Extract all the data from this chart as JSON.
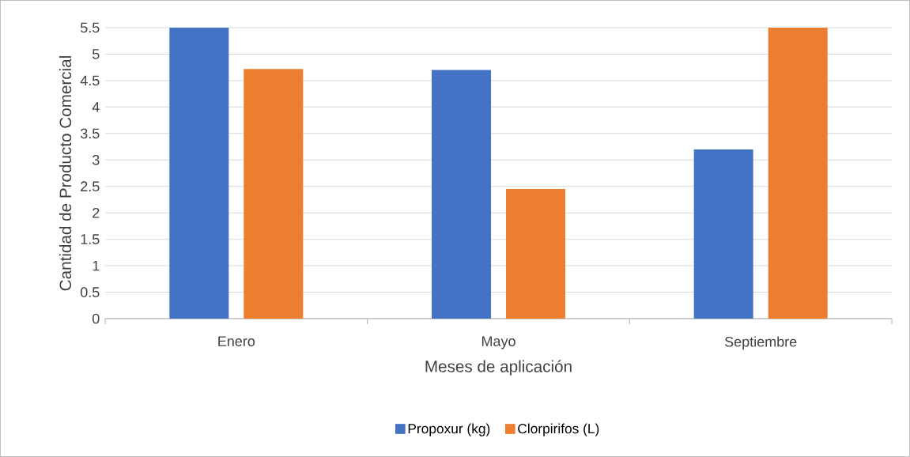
{
  "chart_data": {
    "type": "bar",
    "xlabel": "Meses de aplicación",
    "ylabel": "Cantidad de Producto Comercial",
    "categories": [
      "Enero",
      "Mayo",
      "Septiembre"
    ],
    "series": [
      {
        "name": "Propoxur (kg)",
        "color": "#4472c4",
        "values": [
          5.5,
          4.7,
          3.2
        ]
      },
      {
        "name": "Clorpirifos (L)",
        "color": "#ed7d31",
        "values": [
          4.72,
          2.45,
          5.5
        ]
      }
    ],
    "ylim": [
      0,
      5.5
    ],
    "yticks": [
      0,
      0.5,
      1,
      1.5,
      2,
      2.5,
      3,
      3.5,
      4,
      4.5,
      5,
      5.5
    ],
    "grid": "y",
    "legend": "bottom"
  }
}
